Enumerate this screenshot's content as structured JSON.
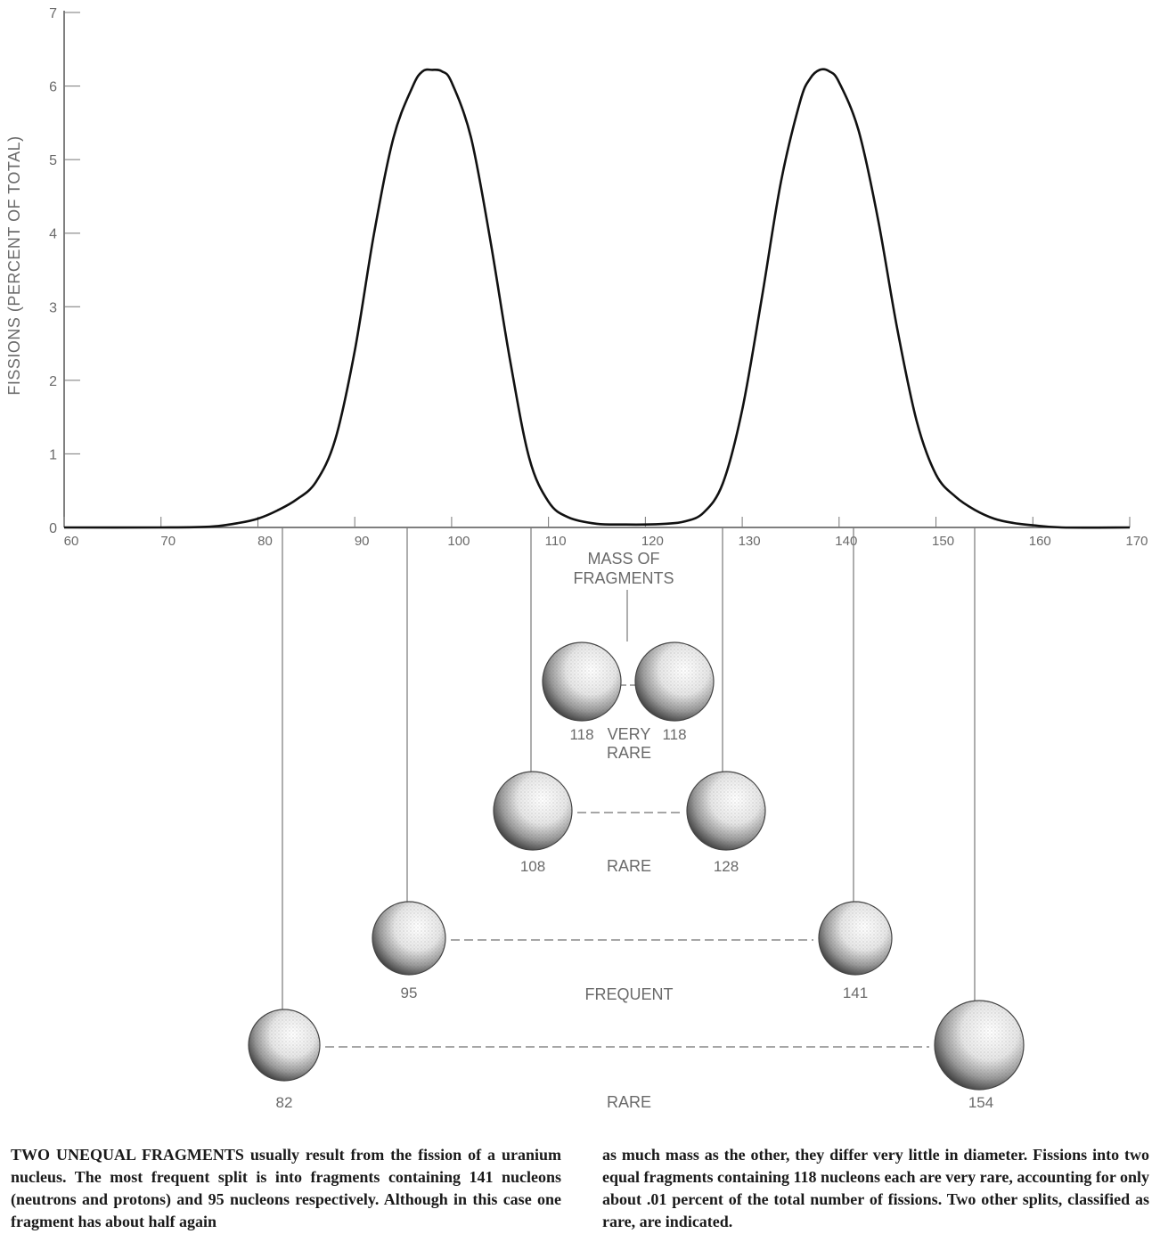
{
  "chart_data": {
    "type": "line",
    "title": "",
    "xlabel": "MASS OF FRAGMENTS",
    "ylabel": "FISSIONS (PERCENT OF TOTAL)",
    "xlim": [
      60,
      170
    ],
    "ylim": [
      0,
      7
    ],
    "x_ticks": [
      "60",
      "70",
      "80",
      "90",
      "100",
      "110",
      "120",
      "130",
      "140",
      "150",
      "160",
      "170"
    ],
    "y_ticks": [
      "0",
      "1",
      "2",
      "3",
      "4",
      "5",
      "6",
      "7"
    ],
    "grid": false,
    "series": [
      {
        "x": [
          60,
          70,
          75,
          78,
          80,
          82,
          84,
          86,
          88,
          90,
          92,
          94,
          96,
          97,
          98,
          99,
          100,
          102,
          104,
          106,
          108,
          110,
          112,
          115,
          118,
          120,
          122,
          124,
          126,
          128,
          130,
          132,
          134,
          136,
          137,
          138,
          139,
          140,
          142,
          144,
          146,
          148,
          150,
          152,
          154,
          156,
          158,
          160,
          163,
          170
        ],
        "y": [
          0,
          0,
          0.01,
          0.06,
          0.12,
          0.23,
          0.38,
          0.62,
          1.2,
          2.4,
          4.0,
          5.3,
          6.0,
          6.2,
          6.22,
          6.2,
          6.05,
          5.3,
          3.9,
          2.3,
          0.95,
          0.35,
          0.14,
          0.05,
          0.04,
          0.04,
          0.05,
          0.08,
          0.2,
          0.6,
          1.6,
          3.1,
          4.7,
          5.8,
          6.1,
          6.22,
          6.2,
          6.05,
          5.4,
          4.2,
          2.7,
          1.45,
          0.72,
          0.42,
          0.24,
          0.12,
          0.06,
          0.03,
          0,
          0
        ]
      }
    ]
  },
  "splits": [
    {
      "label": "VERY RARE",
      "left_mass": "118",
      "right_mass": "118"
    },
    {
      "label": "RARE",
      "left_mass": "108",
      "right_mass": "128"
    },
    {
      "label": "FREQUENT",
      "left_mass": "95",
      "right_mass": "141"
    },
    {
      "label": "RARE",
      "left_mass": "82",
      "right_mass": "154"
    }
  ],
  "caption": {
    "lead": "Two unequal fragments",
    "left_text": "usually result from the fission of a uranium nucleus. The most frequent split is into fragments containing 141 nucleons (neutrons and protons) and 95 nucleons respectively. Although in this case one fragment has about half again",
    "right_text": "as much mass as the other, they differ very little in diameter. Fissions into two equal fragments containing 118 nucleons each are very rare, accounting for only about .01 percent of the total number of fissions. Two other splits, classified as rare, are indicated."
  },
  "colors": {
    "curve": "#111111",
    "axis": "#555555",
    "text": "#6a6a6a",
    "caption": "#1a1a1a"
  }
}
